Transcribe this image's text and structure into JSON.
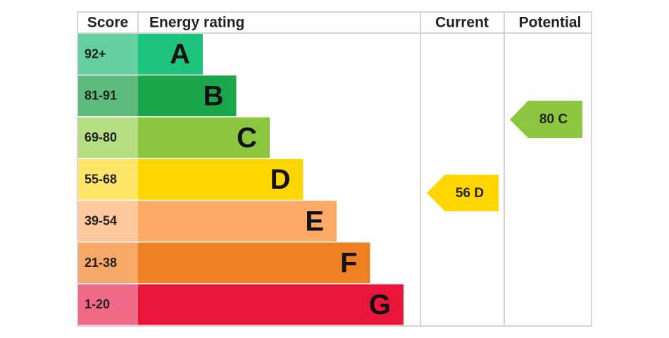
{
  "header": {
    "score": "Score",
    "energy_rating": "Energy rating",
    "current": "Current",
    "potential": "Potential"
  },
  "bands": [
    {
      "score": "92+",
      "letter": "A",
      "color": "#1ec47c",
      "score_color": "#64d0a2"
    },
    {
      "score": "81-91",
      "letter": "B",
      "color": "#1aa64b",
      "score_color": "#5dbb7b"
    },
    {
      "score": "69-80",
      "letter": "C",
      "color": "#8cc63f",
      "score_color": "#b6de83"
    },
    {
      "score": "55-68",
      "letter": "D",
      "color": "#ffd500",
      "score_color": "#ffe566"
    },
    {
      "score": "39-54",
      "letter": "E",
      "color": "#fcaa65",
      "score_color": "#fdc89b"
    },
    {
      "score": "21-38",
      "letter": "F",
      "color": "#ef8023",
      "score_color": "#f5a868"
    },
    {
      "score": "1-20",
      "letter": "G",
      "color": "#e9153b",
      "score_color": "#f06a87"
    }
  ],
  "current": {
    "label": "56 D",
    "color": "#ffd500"
  },
  "potential": {
    "label": "80 C",
    "color": "#8cc63f"
  }
}
